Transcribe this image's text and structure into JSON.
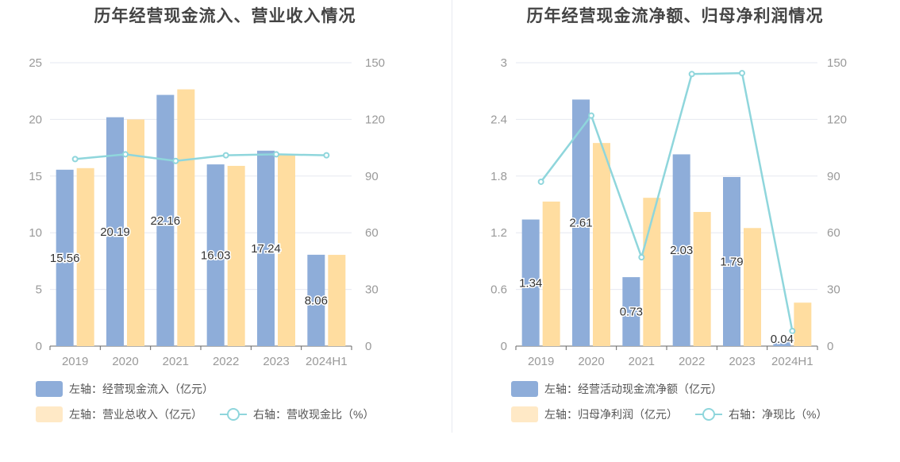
{
  "colors": {
    "blue": "#8eadd9",
    "orange": "#ffdda0",
    "line": "#8fd6dc",
    "axis": "#999999",
    "grid": "#e6e8f0"
  },
  "chart_data": [
    {
      "type": "bar",
      "title": "历年经营现金流入、营业收入情况",
      "categories": [
        "2019",
        "2020",
        "2021",
        "2022",
        "2023",
        "2024H1"
      ],
      "left_axis": {
        "ticks": [
          "0",
          "5",
          "10",
          "15",
          "20",
          "25"
        ],
        "ylim": [
          0,
          25
        ]
      },
      "right_axis": {
        "ticks": [
          "0",
          "30",
          "60",
          "90",
          "120",
          "150"
        ],
        "ylim": [
          0,
          150
        ]
      },
      "series": [
        {
          "name": "左轴：经营现金流入（亿元）",
          "type": "bar",
          "axis": "left",
          "values": [
            15.56,
            20.19,
            22.16,
            16.03,
            17.24,
            8.06
          ],
          "labels": [
            "15.56",
            "20.19",
            "22.16",
            "16.03",
            "17.24",
            "8.06"
          ]
        },
        {
          "name": "左轴：营业总收入（亿元）",
          "type": "bar",
          "axis": "left",
          "values": [
            15.7,
            20.0,
            22.65,
            15.9,
            16.9,
            8.05
          ]
        },
        {
          "name": "右轴：营收现金比（%）",
          "type": "line",
          "axis": "right",
          "values": [
            99,
            101.5,
            98,
            101,
            101.5,
            101
          ]
        }
      ],
      "legend": [
        [
          "左轴：经营现金流入（亿元）"
        ],
        [
          "左轴：营业总收入（亿元）",
          "右轴：营收现金比（%）"
        ]
      ]
    },
    {
      "type": "bar",
      "title": "历年经营现金流净额、归母净利润情况",
      "categories": [
        "2019",
        "2020",
        "2021",
        "2022",
        "2023",
        "2024H1"
      ],
      "left_axis": {
        "ticks": [
          "0",
          "0.6",
          "1.2",
          "1.8",
          "2.4",
          "3"
        ],
        "ylim": [
          0,
          3
        ]
      },
      "right_axis": {
        "ticks": [
          "0",
          "30",
          "60",
          "90",
          "120",
          "150"
        ],
        "ylim": [
          0,
          150
        ]
      },
      "series": [
        {
          "name": "左轴：经营活动现金流净额（亿元）",
          "type": "bar",
          "axis": "left",
          "values": [
            1.34,
            2.61,
            0.73,
            2.03,
            1.79,
            0.04
          ],
          "labels": [
            "1.34",
            "2.61",
            "0.73",
            "2.03",
            "1.79",
            "0.04"
          ]
        },
        {
          "name": "左轴：归母净利润（亿元）",
          "type": "bar",
          "axis": "left",
          "values": [
            1.53,
            2.15,
            1.57,
            1.42,
            1.25,
            0.46
          ]
        },
        {
          "name": "右轴：净现比（%）",
          "type": "line",
          "axis": "right",
          "values": [
            87,
            122,
            47,
            144,
            144.5,
            8
          ]
        }
      ],
      "legend": [
        [
          "左轴：经营活动现金流净额（亿元）"
        ],
        [
          "左轴：归母净利润（亿元）",
          "右轴：净现比（%）"
        ]
      ]
    }
  ]
}
